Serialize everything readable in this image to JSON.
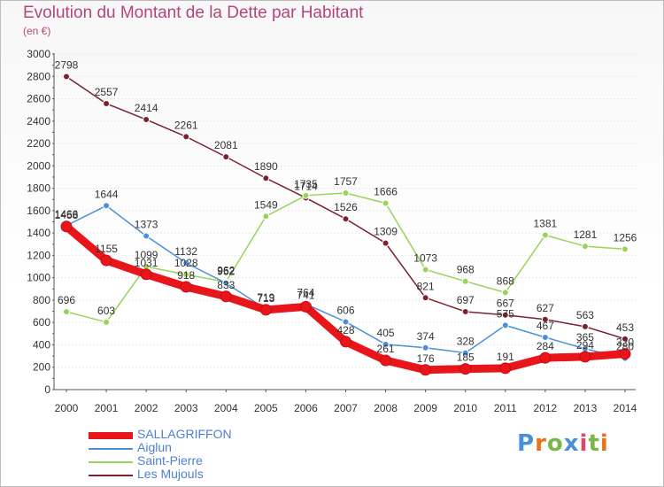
{
  "title": "Evolution du Montant de la Dette par Habitant",
  "subtitle": "(en €)",
  "logo": {
    "text": "Proxiti",
    "colors": [
      "#4a90d9",
      "#e8731a",
      "#7ab648",
      "#4a90d9",
      "#d94a6a",
      "#7ab648",
      "#e8731a"
    ]
  },
  "chart_data": {
    "type": "line",
    "title": "Evolution du Montant de la Dette par Habitant",
    "subtitle": "(en €)",
    "xlabel": "",
    "ylabel": "",
    "categories": [
      "2000",
      "2001",
      "2002",
      "2003",
      "2004",
      "2005",
      "2006",
      "2007",
      "2008",
      "2009",
      "2010",
      "2011",
      "2012",
      "2013",
      "2014"
    ],
    "ylim": [
      0,
      3000
    ],
    "yticks": [
      0,
      200,
      400,
      600,
      800,
      1000,
      1200,
      1400,
      1600,
      1800,
      2000,
      2200,
      2400,
      2600,
      2800,
      3000
    ],
    "grid": "horizontal dotted",
    "legend_position": "bottom-left",
    "series": [
      {
        "name": "SALLAGRIFFON",
        "color": "#e8151b",
        "values": [
          1458,
          1155,
          1031,
          918,
          833,
          713,
          741,
          428,
          261,
          176,
          185,
          191,
          284,
          294,
          320
        ]
      },
      {
        "name": "Aiglun",
        "color": "#4a90d9",
        "values": [
          1466,
          1644,
          1373,
          1132,
          952,
          719,
          764,
          606,
          405,
          374,
          328,
          575,
          467,
          365,
          280
        ]
      },
      {
        "name": "Saint-Pierre",
        "color": "#99d45a",
        "values": [
          696,
          603,
          1099,
          1028,
          962,
          1549,
          1735,
          1757,
          1666,
          1073,
          968,
          868,
          1381,
          1281,
          1256
        ]
      },
      {
        "name": "Les Mujouls",
        "color": "#7a2230",
        "values": [
          2798,
          2557,
          2414,
          2261,
          2081,
          1890,
          1714,
          1526,
          1309,
          821,
          697,
          667,
          627,
          563,
          453
        ]
      }
    ],
    "data_label_values": {
      "SALLAGRIFFON": [
        "1458",
        "1155",
        "1031",
        "918",
        "833",
        "713",
        "741",
        "428",
        "261",
        "176",
        "185",
        "191",
        "284",
        "294",
        "320"
      ],
      "Aiglun": [
        "1466",
        "1644",
        "1373",
        "1132",
        "952",
        "719",
        "764",
        "606",
        "405",
        "374",
        "328",
        "575",
        "467",
        "365",
        "280"
      ],
      "Saint-Pierre": [
        "696",
        "603",
        "1099",
        "1028",
        "962",
        "1549",
        "1735",
        "1757",
        "1666",
        "1073",
        "968",
        "868",
        "1381",
        "1281",
        "1256"
      ],
      "Les Mujouls": [
        "2798",
        "2557",
        "2414",
        "2261",
        "2081",
        "1890",
        "1714",
        "1526",
        "1309",
        "821",
        "697",
        "667",
        "627",
        "563",
        "453"
      ]
    }
  }
}
